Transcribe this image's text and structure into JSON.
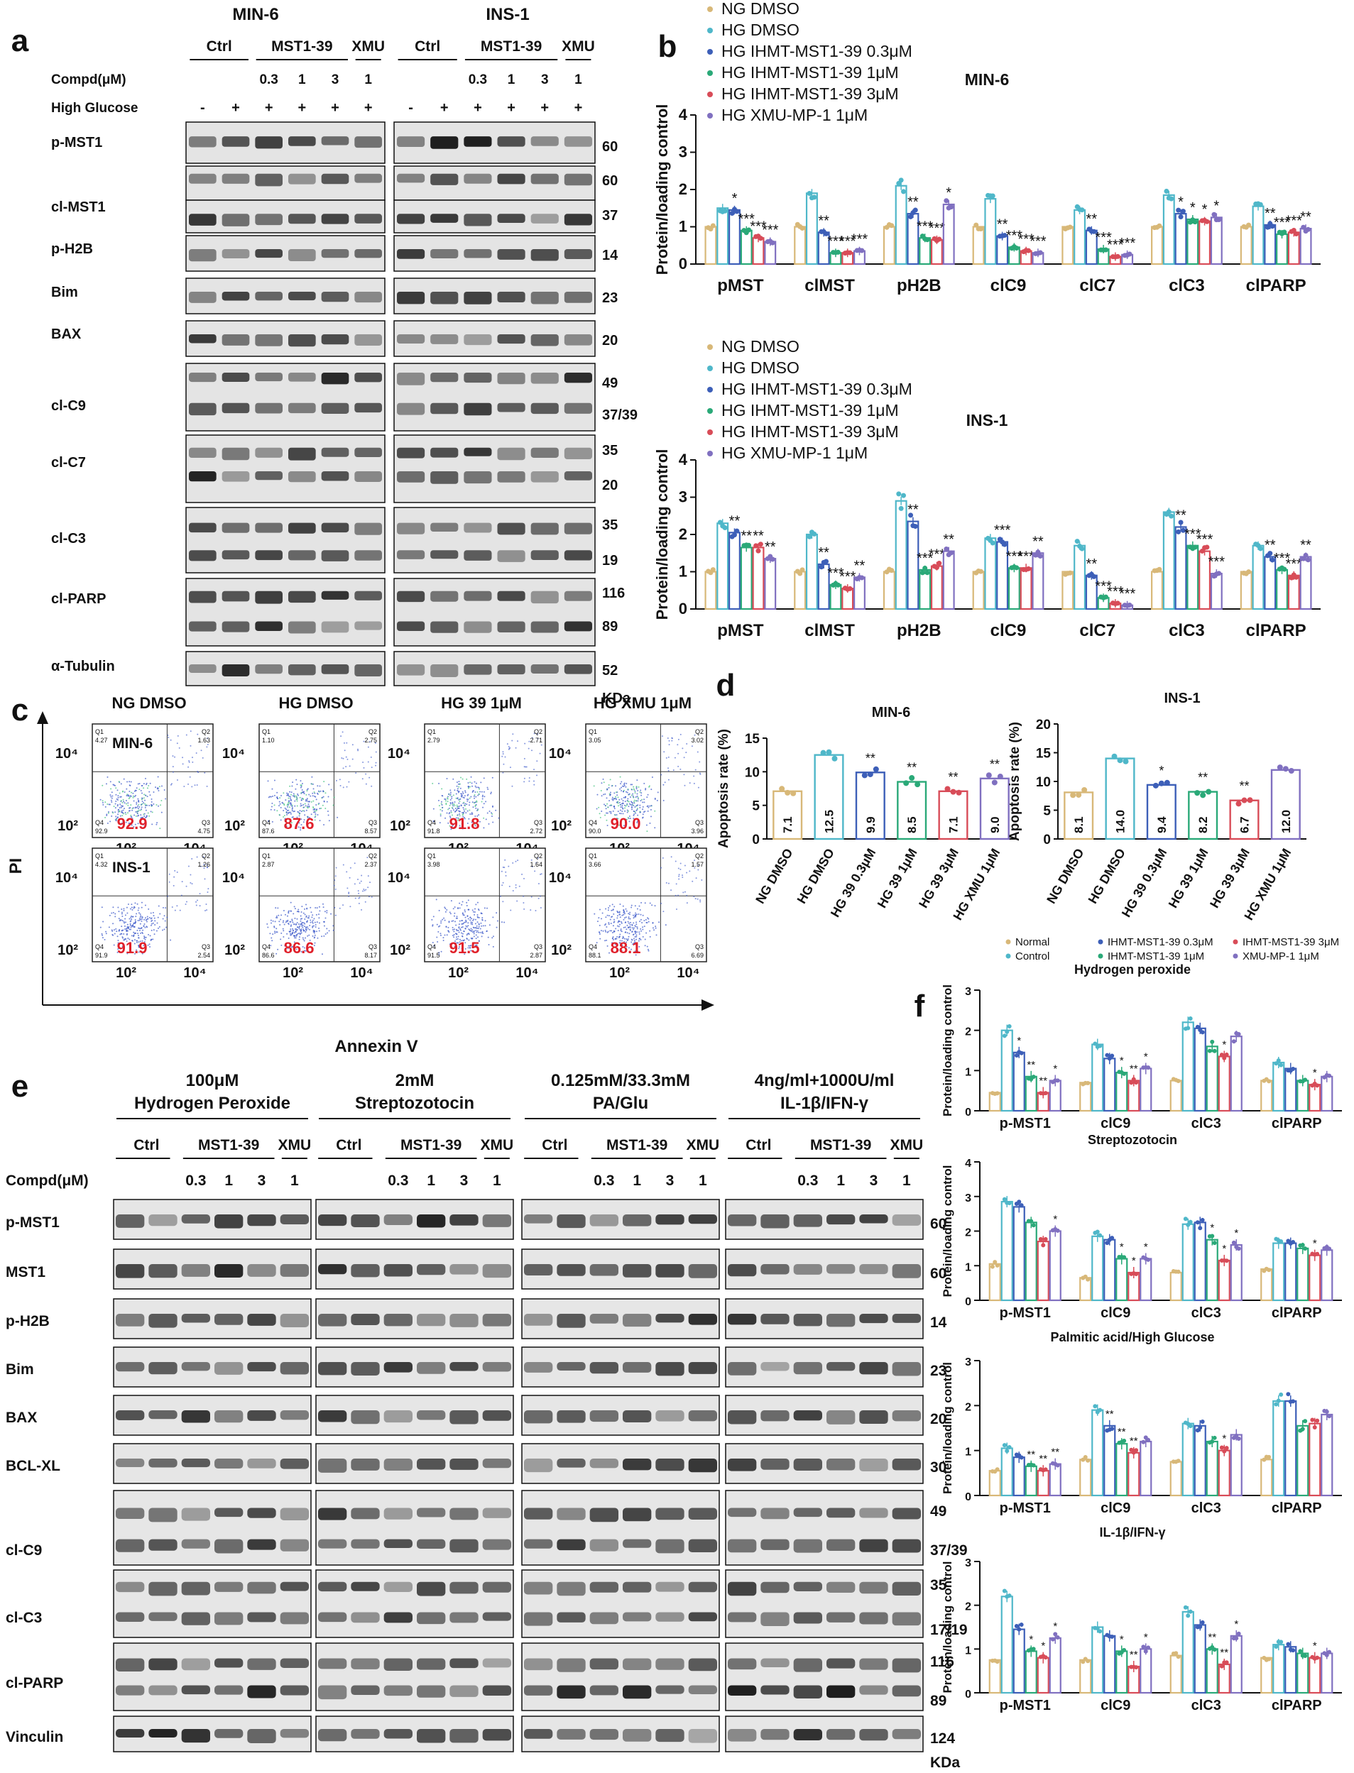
{
  "panel_letters": {
    "a": "a",
    "b": "b",
    "c": "c",
    "d": "d",
    "e": "e",
    "f": "f"
  },
  "panel_a": {
    "cell_lines": [
      "MIN-6",
      "INS-1"
    ],
    "group_labels": [
      "Ctrl",
      "MST1-39",
      "XMU"
    ],
    "row_label_compd": "Compd(μM)",
    "doses": [
      "0.3",
      "1",
      "3",
      "1"
    ],
    "row_label_glucose": "High Glucose",
    "glucose_signs": [
      "-",
      "+",
      "+",
      "+",
      "+",
      "+"
    ],
    "bands": [
      {
        "label": "p-MST1",
        "kda": [
          "60"
        ]
      },
      {
        "label": "",
        "kda": [
          "60"
        ]
      },
      {
        "label": "cl-MST1",
        "kda": [
          "37"
        ]
      },
      {
        "label": "p-H2B",
        "kda": [
          "14"
        ]
      },
      {
        "label": "Bim",
        "kda": [
          "23"
        ]
      },
      {
        "label": "BAX",
        "kda": [
          "20"
        ]
      },
      {
        "label": "cl-C9",
        "kda": [
          "49",
          "37/39"
        ]
      },
      {
        "label": "cl-C7",
        "kda": [
          "35",
          "20"
        ]
      },
      {
        "label": "cl-C3",
        "kda": [
          "35",
          "19"
        ]
      },
      {
        "label": "cl-PARP",
        "kda": [
          "116",
          "89"
        ]
      },
      {
        "label": "α-Tubulin",
        "kda": [
          "52"
        ]
      }
    ],
    "kda_unit": "KDa"
  },
  "panel_b": {
    "legend": [
      "NG DMSO",
      "HG DMSO",
      "HG IHMT-MST1-39 0.3μM",
      "HG IHMT-MST1-39 1μM",
      "HG IHMT-MST1-39 3μM",
      "HG XMU-MP-1 1μM"
    ],
    "colors": [
      "#d8b878",
      "#4fb7c9",
      "#3d5fb8",
      "#2aa978",
      "#d84c58",
      "#8070c0"
    ]
  },
  "chart_data": [
    {
      "type": "bar",
      "title": "MIN-6",
      "ylabel": "Protein/loading control",
      "ylim": [
        0,
        4
      ],
      "yticks": [
        "0",
        "1",
        "2",
        "3",
        "4"
      ],
      "categories": [
        "pMST",
        "clMST",
        "pH2B",
        "clC9",
        "clC7",
        "clC3",
        "clPARP"
      ],
      "series": [
        {
          "name": "NG DMSO",
          "values": [
            1,
            1,
            1,
            1,
            1,
            1,
            1
          ]
        },
        {
          "name": "HG DMSO",
          "values": [
            1.5,
            1.9,
            2.1,
            1.75,
            1.45,
            1.85,
            1.55
          ]
        },
        {
          "name": "HG IHMT-MST1-39 0.3μM",
          "values": [
            1.45,
            0.85,
            1.35,
            0.75,
            0.9,
            1.35,
            1.05
          ]
        },
        {
          "name": "HG IHMT-MST1-39 1μM",
          "values": [
            0.9,
            0.3,
            0.7,
            0.45,
            0.4,
            1.2,
            0.8
          ]
        },
        {
          "name": "HG IHMT-MST1-39 3μM",
          "values": [
            0.7,
            0.3,
            0.65,
            0.35,
            0.2,
            1.15,
            0.85
          ]
        },
        {
          "name": "HG XMU-MP-1 1μM",
          "values": [
            0.6,
            0.35,
            1.6,
            0.3,
            0.25,
            1.25,
            0.95
          ]
        }
      ],
      "significance": [
        [
          "",
          "*",
          "***",
          "***",
          "***"
        ],
        [
          "",
          "**",
          "***",
          "***",
          "***"
        ],
        [
          "",
          "**",
          "***",
          "***",
          "*"
        ],
        [
          "",
          "**",
          "***",
          "***",
          "***"
        ],
        [
          "",
          "**",
          "***",
          "***",
          "***"
        ],
        [
          "",
          "*",
          "*",
          "*",
          "*"
        ],
        [
          "",
          "**",
          "***",
          "***",
          "**"
        ]
      ]
    },
    {
      "type": "bar",
      "title": "INS-1",
      "ylabel": "Protein/loading control",
      "ylim": [
        0,
        4
      ],
      "yticks": [
        "0",
        "1",
        "2",
        "3",
        "4"
      ],
      "categories": [
        "pMST",
        "clMST",
        "pH2B",
        "clC9",
        "clC7",
        "clC3",
        "clPARP"
      ],
      "series": [
        {
          "name": "NG DMSO",
          "values": [
            1,
            1,
            1,
            1,
            1,
            1,
            1
          ]
        },
        {
          "name": "HG DMSO",
          "values": [
            2.3,
            2.0,
            2.9,
            1.9,
            1.7,
            2.6,
            1.7
          ]
        },
        {
          "name": "HG IHMT-MST1-39 0.3μM",
          "values": [
            2.05,
            1.2,
            2.35,
            1.8,
            0.9,
            2.2,
            1.4
          ]
        },
        {
          "name": "HG IHMT-MST1-39 1μM",
          "values": [
            1.65,
            0.65,
            1.05,
            1.1,
            0.3,
            1.7,
            1.05
          ]
        },
        {
          "name": "HG IHMT-MST1-39 3μM",
          "values": [
            1.65,
            0.55,
            1.15,
            1.1,
            0.15,
            1.55,
            0.9
          ]
        },
        {
          "name": "HG XMU-MP-1 1μM",
          "values": [
            1.35,
            0.85,
            1.55,
            1.5,
            0.1,
            0.95,
            1.4
          ]
        }
      ],
      "significance": [
        [
          "",
          "**",
          "**",
          "**",
          "**"
        ],
        [
          "",
          "**",
          "***",
          "***",
          "**"
        ],
        [
          "",
          "**",
          "***",
          "***",
          "**"
        ],
        [
          "",
          "***",
          "***",
          "***",
          "**"
        ],
        [
          "",
          "**",
          "***",
          "***",
          "***"
        ],
        [
          "",
          "**",
          "***",
          "***",
          "***"
        ],
        [
          "",
          "**",
          "***",
          "***",
          "**"
        ]
      ]
    },
    {
      "type": "bar",
      "title": "MIN-6",
      "ylabel": "Apoptosis rate (%)",
      "ylim": [
        0,
        15
      ],
      "yticks": [
        "0",
        "5",
        "10",
        "15"
      ],
      "categories": [
        "NG DMSO",
        "HG DMSO",
        "HG 39 0.3μM",
        "HG 39 1μM",
        "HG 39 3μM",
        "HG XMU 1μM"
      ],
      "values": [
        7.1,
        12.5,
        9.9,
        8.5,
        7.1,
        9.0
      ],
      "labels": [
        "7.1",
        "12.5",
        "9.9",
        "8.5",
        "7.1",
        "9.0"
      ],
      "significance": [
        "",
        "",
        "**",
        "**",
        "**",
        "**"
      ]
    },
    {
      "type": "bar",
      "title": "INS-1",
      "ylabel": "Apoptosis rate (%)",
      "ylim": [
        0,
        20
      ],
      "yticks": [
        "0",
        "5",
        "10",
        "15",
        "20"
      ],
      "categories": [
        "NG DMSO",
        "HG DMSO",
        "HG 39 0.3μM",
        "HG 39 1μM",
        "HG 39 3μM",
        "HG XMU 1μM"
      ],
      "values": [
        8.1,
        14.0,
        9.4,
        8.2,
        6.7,
        12.0
      ],
      "labels": [
        "8.1",
        "14.0",
        "9.4",
        "8.2",
        "6.7",
        "12.0"
      ],
      "significance": [
        "",
        "",
        "*",
        "**",
        "**",
        ""
      ]
    },
    {
      "type": "bar",
      "title": "Hydrogen peroxide",
      "ylabel": "Protein/loading control",
      "ylim": [
        0,
        3
      ],
      "yticks": [
        "0",
        "1",
        "2",
        "3"
      ],
      "categories": [
        "p-MST1",
        "clC9",
        "clC3",
        "clPARP"
      ],
      "series": [
        {
          "name": "Normal",
          "values": [
            0.45,
            0.7,
            0.75,
            0.75
          ]
        },
        {
          "name": "Control",
          "values": [
            2.0,
            1.65,
            2.2,
            1.2
          ]
        },
        {
          "name": "IHMT-MST1-39 0.3μM",
          "values": [
            1.45,
            1.3,
            2.05,
            1.05
          ]
        },
        {
          "name": "IHMT-MST1-39 1μM",
          "values": [
            0.85,
            0.95,
            1.6,
            0.75
          ]
        },
        {
          "name": "IHMT-MST1-39 3μM",
          "values": [
            0.45,
            0.75,
            1.35,
            0.65
          ]
        },
        {
          "name": "XMU-MP-1 1μM",
          "values": [
            0.75,
            1.05,
            1.85,
            0.85
          ]
        }
      ],
      "significance": [
        [
          "",
          "*",
          "**",
          "**",
          "*"
        ],
        [
          "",
          "",
          "*",
          "**",
          "*"
        ],
        [
          "",
          "",
          "",
          "*",
          ""
        ],
        [
          "",
          "",
          "",
          "*",
          ""
        ]
      ]
    },
    {
      "type": "bar",
      "title": "Streptozotocin",
      "ylabel": "Protein/loading control",
      "ylim": [
        0,
        4
      ],
      "yticks": [
        "0",
        "1",
        "2",
        "3",
        "4"
      ],
      "categories": [
        "p-MST1",
        "clC9",
        "clC3",
        "clPARP"
      ],
      "series": [
        {
          "name": "Normal",
          "values": [
            1.05,
            0.65,
            0.8,
            0.9
          ]
        },
        {
          "name": "Control",
          "values": [
            2.85,
            1.85,
            2.2,
            1.65
          ]
        },
        {
          "name": "IHMT-MST1-39 0.3μM",
          "values": [
            2.7,
            1.75,
            2.25,
            1.65
          ]
        },
        {
          "name": "IHMT-MST1-39 1μM",
          "values": [
            2.25,
            1.2,
            1.75,
            1.5
          ]
        },
        {
          "name": "IHMT-MST1-39 3μM",
          "values": [
            1.7,
            0.8,
            1.15,
            1.3
          ]
        },
        {
          "name": "XMU-MP-1 1μM",
          "values": [
            2.0,
            1.2,
            1.6,
            1.45
          ]
        }
      ],
      "significance": [
        [
          "",
          "",
          "",
          "",
          "*"
        ],
        [
          "",
          "",
          "*",
          "*",
          "*"
        ],
        [
          "",
          "",
          "*",
          "*",
          "*"
        ],
        [
          "",
          "",
          "",
          "*",
          ""
        ]
      ]
    },
    {
      "type": "bar",
      "title": "Palmitic acid/High Glucose",
      "ylabel": "Protein/loading control",
      "ylim": [
        0,
        3
      ],
      "yticks": [
        "0",
        "1",
        "2",
        "3"
      ],
      "categories": [
        "p-MST1",
        "clC9",
        "clC3",
        "clPARP"
      ],
      "series": [
        {
          "name": "Normal",
          "values": [
            0.55,
            0.8,
            0.75,
            0.8
          ]
        },
        {
          "name": "Control",
          "values": [
            1.05,
            1.9,
            1.6,
            2.1
          ]
        },
        {
          "name": "IHMT-MST1-39 0.3μM",
          "values": [
            0.85,
            1.55,
            1.55,
            2.1
          ]
        },
        {
          "name": "IHMT-MST1-39 1μM",
          "values": [
            0.65,
            1.15,
            1.2,
            1.55
          ]
        },
        {
          "name": "IHMT-MST1-39 3μM",
          "values": [
            0.55,
            0.95,
            1.0,
            1.6
          ]
        },
        {
          "name": "XMU-MP-1 1μM",
          "values": [
            0.7,
            1.2,
            1.35,
            1.8
          ]
        }
      ],
      "significance": [
        [
          "",
          "",
          "**",
          "**",
          "**"
        ],
        [
          "",
          "**",
          "**",
          "**",
          ""
        ],
        [
          "",
          "",
          "",
          "*",
          ""
        ],
        [
          "",
          "",
          "",
          "",
          ""
        ]
      ]
    },
    {
      "type": "bar",
      "title": "IL-1β/IFN-γ",
      "ylabel": "Protein/loading control",
      "ylim": [
        0,
        3
      ],
      "yticks": [
        "0",
        "1",
        "2",
        "3"
      ],
      "categories": [
        "p-MST1",
        "clC9",
        "clC3",
        "clPARP"
      ],
      "series": [
        {
          "name": "Normal",
          "values": [
            0.75,
            0.75,
            0.85,
            0.8
          ]
        },
        {
          "name": "Control",
          "values": [
            2.2,
            1.5,
            1.85,
            1.1
          ]
        },
        {
          "name": "IHMT-MST1-39 0.3μM",
          "values": [
            1.45,
            1.3,
            1.55,
            1.05
          ]
        },
        {
          "name": "IHMT-MST1-39 1μM",
          "values": [
            0.95,
            0.95,
            1.0,
            0.9
          ]
        },
        {
          "name": "IHMT-MST1-39 3μM",
          "values": [
            0.8,
            0.6,
            0.65,
            0.8
          ]
        },
        {
          "name": "XMU-MP-1 1μM",
          "values": [
            1.25,
            1.0,
            1.3,
            0.9
          ]
        }
      ],
      "significance": [
        [
          "",
          "",
          "*",
          "*",
          "*"
        ],
        [
          "",
          "",
          "*",
          "**",
          "*"
        ],
        [
          "",
          "",
          "**",
          "**",
          "*"
        ],
        [
          "",
          "",
          "",
          "*",
          ""
        ]
      ]
    }
  ],
  "panel_c": {
    "columns": [
      "NG DMSO",
      "HG DMSO",
      "HG 39 1μM",
      "HG XMU 1μM"
    ],
    "rows": [
      "MIN-6",
      "INS-1"
    ],
    "y_axis_label": "PI",
    "x_axis_label": "Annexin V",
    "tick_lo": "10²",
    "tick_hi": "10⁴",
    "quad_labels": [
      "Q1",
      "Q2",
      "Q3",
      "Q4"
    ],
    "big_values": [
      [
        "92.9",
        "87.6",
        "91.8",
        "90.0"
      ],
      [
        "91.9",
        "86.6",
        "91.5",
        "88.1"
      ]
    ],
    "q1": [
      [
        "4.27",
        "1.10",
        "2.79",
        "3.05"
      ],
      [
        "4.32",
        "2.87",
        "3.98",
        "3.66"
      ]
    ],
    "q2": [
      [
        "1.63",
        "2.75",
        "2.71",
        "3.02"
      ],
      [
        "1.26",
        "2.37",
        "1.64",
        "1.57"
      ]
    ],
    "q3": [
      [
        "4.75",
        "8.57",
        "2.72",
        "3.96"
      ],
      [
        "2.54",
        "8.17",
        "2.87",
        "6.69"
      ]
    ],
    "q4": [
      [
        "92.9",
        "87.6",
        "91.8",
        "90.0"
      ],
      [
        "91.9",
        "86.6",
        "91.5",
        "88.1"
      ]
    ]
  },
  "panel_f": {
    "legend": [
      "Normal",
      "Control",
      "IHMT-MST1-39 0.3μM",
      "IHMT-MST1-39 1μM",
      "IHMT-MST1-39 3μM",
      "XMU-MP-1 1μM"
    ]
  },
  "panel_e": {
    "blocks": [
      {
        "line1": "100μM",
        "line2": "Hydrogen Peroxide"
      },
      {
        "line1": "2mM",
        "line2": "Streptozotocin"
      },
      {
        "line1": "0.125mM/33.3mM",
        "line2": "PA/Glu"
      },
      {
        "line1": "4ng/ml+1000U/ml",
        "line2": "IL-1β/IFN-γ"
      }
    ],
    "group_labels": [
      "Ctrl",
      "MST1-39",
      "XMU"
    ],
    "row_label_compd": "Compd(μM)",
    "doses": [
      "0.3",
      "1",
      "3",
      "1"
    ],
    "bands": [
      {
        "label": "p-MST1",
        "kda": [
          "60"
        ]
      },
      {
        "label": "MST1",
        "kda": [
          "60"
        ]
      },
      {
        "label": "p-H2B",
        "kda": [
          "14"
        ]
      },
      {
        "label": "Bim",
        "kda": [
          "23"
        ]
      },
      {
        "label": "BAX",
        "kda": [
          "20"
        ]
      },
      {
        "label": "BCL-XL",
        "kda": [
          "30"
        ]
      },
      {
        "label": "cl-C9",
        "kda": [
          "49",
          "37/39"
        ]
      },
      {
        "label": "cl-C3",
        "kda": [
          "35",
          "17/19"
        ]
      },
      {
        "label": "cl-PARP",
        "kda": [
          "116",
          "89"
        ]
      },
      {
        "label": "Vinculin",
        "kda": [
          "124"
        ]
      }
    ],
    "kda_unit": "KDa"
  }
}
